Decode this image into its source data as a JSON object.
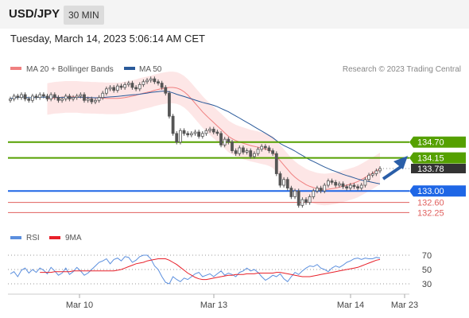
{
  "header": {
    "symbol": "USD/JPY",
    "interval": "30 MIN",
    "datetime": "Tuesday, March 14, 2023 5:06:14 AM CET"
  },
  "legend": {
    "ma20_label": "MA 20 + Bollinger Bands",
    "ma50_label": "MA 50",
    "copyright": "Research © 2023 Trading Central",
    "rsi_label": "RSI",
    "rsi_ma_label": "9MA"
  },
  "colors": {
    "ma20": "#f08080",
    "ma50": "#2a5a9a",
    "bollinger_fill": "#fde2e2",
    "green_level": "#55a000",
    "blue_level": "#1e66e6",
    "red_level": "#e0605e",
    "candle": "#555555",
    "rsi": "#5b8fde",
    "rsi_ma": "#e8202a",
    "forecast_arrow": "#2a5ea8"
  },
  "chart_data": [
    {
      "type": "candlestick",
      "title": "USD/JPY 30 MIN",
      "x_tick_labels": [
        "Mar 10",
        "Mar 13",
        "Mar 14",
        "Mar 23"
      ],
      "ylim": [
        131.9,
        136.6
      ],
      "levels": [
        {
          "value": 134.7,
          "label": "134.70",
          "kind": "resistance",
          "color": "#55a000"
        },
        {
          "value": 134.15,
          "label": "134.15",
          "kind": "resistance",
          "color": "#55a000"
        },
        {
          "value": 133.78,
          "label": "133.78",
          "kind": "last-price",
          "color": "#333333"
        },
        {
          "value": 133.0,
          "label": "133.00",
          "kind": "pivot",
          "color": "#1e66e6"
        },
        {
          "value": 132.6,
          "label": "132.60",
          "kind": "support",
          "color": "#e0605e"
        },
        {
          "value": 132.25,
          "label": "132.25",
          "kind": "support",
          "color": "#e0605e"
        }
      ],
      "price_close": [
        136.2,
        136.3,
        136.25,
        136.35,
        136.2,
        136.15,
        136.3,
        136.25,
        136.35,
        136.3,
        136.2,
        136.35,
        136.25,
        136.15,
        136.2,
        136.3,
        136.2,
        136.25,
        136.3,
        136.35,
        136.15,
        136.2,
        136.1,
        136.15,
        136.25,
        136.4,
        136.55,
        136.6,
        136.5,
        136.65,
        136.6,
        136.7,
        136.75,
        136.6,
        136.55,
        136.7,
        136.8,
        136.85,
        136.9,
        136.8,
        136.75,
        136.6,
        136.4,
        135.6,
        135.0,
        134.7,
        135.1,
        135.0,
        134.95,
        135.0,
        135.05,
        134.9,
        135.0,
        135.1,
        135.15,
        135.05,
        135.0,
        134.6,
        134.8,
        134.7,
        134.4,
        134.3,
        134.5,
        134.35,
        134.4,
        134.2,
        134.3,
        134.45,
        134.55,
        134.5,
        134.4,
        134.3,
        133.6,
        133.2,
        133.4,
        133.1,
        132.8,
        133.0,
        132.5,
        132.7,
        132.6,
        132.8,
        133.0,
        133.1,
        133.0,
        133.2,
        133.35,
        133.3,
        133.2,
        133.25,
        133.15,
        133.1,
        133.2,
        133.15,
        133.1,
        133.2,
        133.4,
        133.55,
        133.6,
        133.7,
        133.78
      ],
      "ma20": [
        136.2,
        136.22,
        136.24,
        136.25,
        136.26,
        136.27,
        136.27,
        136.27,
        136.27,
        136.26,
        136.25,
        136.25,
        136.24,
        136.24,
        136.23,
        136.23,
        136.22,
        136.22,
        136.22,
        136.22,
        136.23,
        136.25,
        136.27,
        136.3,
        136.33,
        136.37,
        136.4,
        136.43,
        136.46,
        136.5,
        136.53,
        136.56,
        136.58,
        136.6,
        136.6,
        136.58,
        136.53,
        136.45,
        136.34,
        136.2,
        136.05,
        135.9,
        135.75,
        135.62,
        135.5,
        135.38,
        135.26,
        135.14,
        135.02,
        134.9,
        134.82,
        134.75,
        134.7,
        134.66,
        134.62,
        134.58,
        134.55,
        134.52,
        134.49,
        134.46,
        134.42,
        134.35,
        134.2,
        134.05,
        133.9,
        133.75,
        133.6,
        133.48,
        133.38,
        133.3,
        133.22,
        133.16,
        133.12,
        133.08,
        133.06,
        133.05,
        133.06,
        133.08,
        133.1,
        133.13,
        133.17,
        133.2,
        133.24,
        133.28,
        133.33,
        133.4,
        133.47,
        133.55,
        133.62,
        133.7,
        133.78
      ],
      "ma20_start_index": 10,
      "rsi": {
        "levels": [
          70,
          50,
          30
        ],
        "ylim": [
          20,
          80
        ],
        "rsi_values": [
          44,
          47,
          40,
          49,
          52,
          45,
          50,
          46,
          52,
          49,
          44,
          53,
          48,
          42,
          45,
          52,
          43,
          47,
          53,
          48,
          42,
          45,
          50,
          55,
          60,
          62,
          65,
          58,
          64,
          66,
          62,
          68,
          67,
          60,
          63,
          68,
          70,
          70,
          65,
          55,
          50,
          40,
          32,
          30,
          40,
          36,
          33,
          38,
          36,
          40,
          44,
          46,
          40,
          42,
          44,
          40,
          44,
          48,
          42,
          45,
          43,
          40,
          46,
          48,
          52,
          48,
          50,
          46,
          40,
          35,
          38,
          42,
          40,
          44,
          37,
          33,
          40,
          46,
          43,
          48,
          52,
          55,
          54,
          57,
          52,
          50,
          47,
          52,
          55,
          53,
          56,
          60,
          62,
          65,
          66,
          64,
          66,
          65,
          65,
          67,
          66
        ],
        "ma_values": [
          46,
          46,
          46,
          46,
          47,
          47,
          47,
          47,
          47,
          48,
          48,
          48,
          48,
          48,
          48,
          48,
          48,
          48,
          48,
          48,
          48,
          49,
          50,
          52,
          54,
          56,
          58,
          59,
          60,
          62,
          63,
          64,
          65,
          65,
          65,
          63,
          60,
          57,
          53,
          49,
          45,
          42,
          39,
          37,
          36,
          36,
          37,
          38,
          39,
          40,
          41,
          42,
          42,
          43,
          43,
          43,
          44,
          44,
          44,
          45,
          45,
          45,
          45,
          45,
          46,
          46,
          45,
          44,
          43,
          42,
          41,
          40,
          40,
          40,
          41,
          42,
          43,
          44,
          45,
          46,
          47,
          48,
          49,
          50,
          51,
          52,
          53,
          55,
          57,
          59,
          61,
          63,
          64
        ]
      }
    }
  ]
}
